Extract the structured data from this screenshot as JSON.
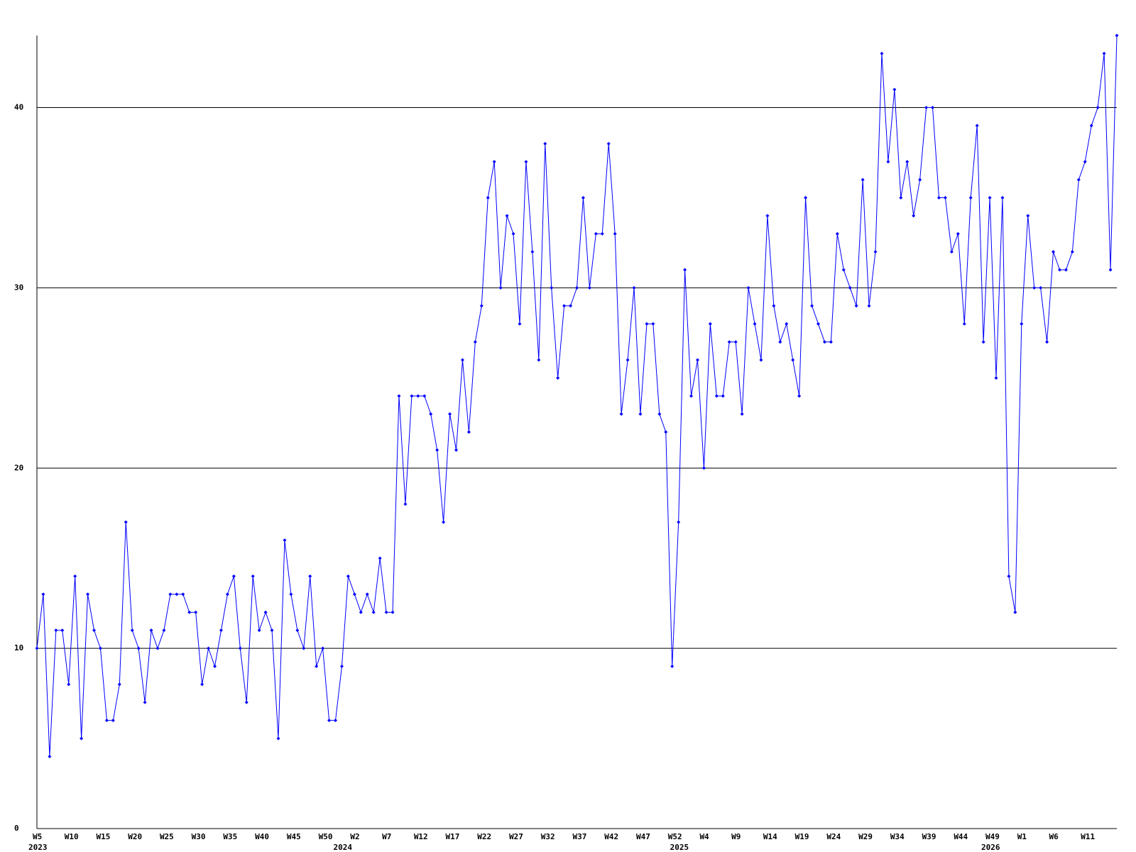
{
  "chart_data": {
    "type": "line",
    "categories": [
      "W5",
      null,
      null,
      null,
      null,
      "W10",
      null,
      null,
      null,
      null,
      "W15",
      null,
      null,
      null,
      null,
      "W20",
      null,
      null,
      null,
      null,
      "W25",
      null,
      null,
      null,
      null,
      "W30",
      null,
      null,
      null,
      null,
      "W35",
      null,
      null,
      null,
      null,
      "W40",
      null,
      null,
      null,
      null,
      "W45",
      null,
      null,
      null,
      null,
      "W50",
      null,
      null,
      null,
      null,
      "W2",
      null,
      null,
      null,
      null,
      "W7",
      null,
      null,
      null,
      null,
      "W12",
      null,
      null,
      null,
      null,
      "W17",
      null,
      null,
      null,
      null,
      "W22",
      null,
      null,
      null,
      null,
      "W27",
      null,
      null,
      null,
      null,
      "W32",
      null,
      null,
      null,
      null,
      "W37",
      null,
      null,
      null,
      null,
      "W42",
      null,
      null,
      null,
      null,
      "W47",
      null,
      null,
      null,
      null,
      "W52",
      null,
      null,
      null,
      null,
      "W4",
      null,
      null,
      null,
      null,
      "W9",
      null,
      null,
      null,
      null,
      "W14",
      null,
      null,
      null,
      null,
      "W19",
      null,
      null,
      null,
      null,
      "W24",
      null,
      null,
      null,
      null,
      "W29",
      null,
      null,
      null,
      null,
      "W34",
      null,
      null,
      null,
      null,
      "W39",
      null,
      null,
      null,
      null,
      "W44",
      null,
      null,
      null,
      null,
      "W49",
      null,
      null,
      null,
      null,
      "W1",
      null,
      null,
      null,
      null,
      "W6",
      null,
      null,
      null,
      null,
      "W11",
      null,
      null,
      null,
      null,
      null
    ],
    "years": [
      "2023",
      null,
      null,
      null,
      null,
      null,
      null,
      null,
      null,
      null,
      null,
      null,
      null,
      null,
      null,
      null,
      null,
      null,
      null,
      null,
      null,
      null,
      null,
      null,
      null,
      null,
      null,
      null,
      null,
      null,
      null,
      null,
      null,
      null,
      null,
      null,
      null,
      null,
      null,
      null,
      null,
      null,
      null,
      null,
      null,
      null,
      null,
      null,
      "2024",
      null,
      null,
      null,
      null,
      null,
      null,
      null,
      null,
      null,
      null,
      null,
      null,
      null,
      null,
      null,
      null,
      null,
      null,
      null,
      null,
      null,
      null,
      null,
      null,
      null,
      null,
      null,
      null,
      null,
      null,
      null,
      null,
      null,
      null,
      null,
      null,
      null,
      null,
      null,
      null,
      null,
      null,
      null,
      null,
      null,
      null,
      null,
      null,
      null,
      null,
      null,
      null,
      "2025",
      null,
      null,
      null,
      null,
      null,
      null,
      null,
      null,
      null,
      null,
      null,
      null,
      null,
      null,
      null,
      null,
      null,
      null,
      null,
      null,
      null,
      null,
      null,
      null,
      null,
      null,
      null,
      null,
      null,
      null,
      null,
      null,
      null,
      null,
      null,
      null,
      null,
      null,
      null,
      null,
      null,
      null,
      null,
      null,
      null,
      null,
      null,
      null,
      "2026",
      null,
      null,
      null,
      null,
      null,
      null,
      null,
      null,
      null,
      null,
      null,
      null,
      null,
      null,
      null,
      null
    ],
    "series": [
      {
        "color": "#0000ff",
        "values": [
          10,
          13,
          4,
          11,
          11,
          8,
          14,
          5,
          13,
          11,
          10,
          6,
          6,
          8,
          17,
          11,
          10,
          7,
          11,
          10,
          11,
          13,
          13,
          13,
          12,
          12,
          8,
          10,
          9,
          11,
          13,
          14,
          10,
          7,
          14,
          11,
          12,
          11,
          5,
          16,
          13,
          11,
          10,
          14,
          9,
          10,
          6,
          6,
          9,
          14,
          13,
          12,
          13,
          12,
          15,
          12,
          12,
          24,
          18,
          24,
          24,
          24,
          23,
          21,
          17,
          23,
          21,
          26,
          22,
          27,
          29,
          35,
          37,
          30,
          34,
          33,
          28,
          37,
          32,
          26,
          38,
          30,
          25,
          29,
          29,
          30,
          35,
          30,
          33,
          33,
          38,
          33,
          23,
          26,
          30,
          23,
          28,
          28,
          23,
          22,
          9,
          17,
          31,
          24,
          26,
          20,
          28,
          24,
          24,
          27,
          27,
          23,
          30,
          28,
          26,
          34,
          29,
          27,
          28,
          26,
          24,
          35,
          29,
          28,
          27,
          27,
          33,
          31,
          30,
          29,
          36,
          29,
          32,
          43,
          37,
          41,
          35,
          37,
          34,
          36,
          40,
          40,
          35,
          35,
          32,
          33,
          28,
          35,
          39,
          27,
          35,
          25,
          35,
          14,
          12,
          28,
          34,
          30,
          30,
          27,
          32,
          31,
          31,
          32,
          36,
          37,
          39,
          40,
          43,
          31,
          44
        ]
      }
    ],
    "ylim": [
      0,
      44
    ],
    "yticks": [
      0,
      10,
      20,
      30,
      40
    ],
    "grid": true
  }
}
